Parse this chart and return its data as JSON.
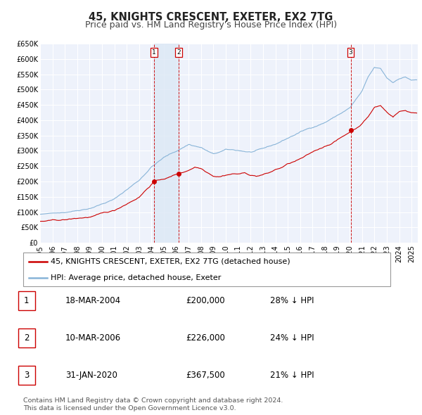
{
  "title": "45, KNIGHTS CRESCENT, EXETER, EX2 7TG",
  "subtitle": "Price paid vs. HM Land Registry's House Price Index (HPI)",
  "ylim": [
    0,
    650000
  ],
  "yticks": [
    0,
    50000,
    100000,
    150000,
    200000,
    250000,
    300000,
    350000,
    400000,
    450000,
    500000,
    550000,
    600000,
    650000
  ],
  "ytick_labels": [
    "£0",
    "£50K",
    "£100K",
    "£150K",
    "£200K",
    "£250K",
    "£300K",
    "£350K",
    "£400K",
    "£450K",
    "£500K",
    "£550K",
    "£600K",
    "£650K"
  ],
  "xlim_start": 1995.0,
  "xlim_end": 2025.5,
  "xtick_years": [
    1995,
    1996,
    1997,
    1998,
    1999,
    2000,
    2001,
    2002,
    2003,
    2004,
    2005,
    2006,
    2007,
    2008,
    2009,
    2010,
    2011,
    2012,
    2013,
    2014,
    2015,
    2016,
    2017,
    2018,
    2019,
    2020,
    2021,
    2022,
    2023,
    2024,
    2025
  ],
  "bg_color": "#eef2fb",
  "grid_color": "#ffffff",
  "sale_color": "#cc0000",
  "hpi_color": "#88b4d8",
  "vline_color": "#cc0000",
  "sale_marker_color": "#cc0000",
  "span_color": "#dce8f5",
  "transaction1_date": 2004.21,
  "transaction1_price": 200000,
  "transaction1_label": "1",
  "transaction2_date": 2006.19,
  "transaction2_price": 226000,
  "transaction2_label": "2",
  "transaction3_date": 2020.08,
  "transaction3_price": 367500,
  "transaction3_label": "3",
  "legend_address": "45, KNIGHTS CRESCENT, EXETER, EX2 7TG (detached house)",
  "legend_hpi": "HPI: Average price, detached house, Exeter",
  "table_rows": [
    {
      "num": "1",
      "date": "18-MAR-2004",
      "price": "£200,000",
      "hpi": "28% ↓ HPI"
    },
    {
      "num": "2",
      "date": "10-MAR-2006",
      "price": "£226,000",
      "hpi": "24% ↓ HPI"
    },
    {
      "num": "3",
      "date": "31-JAN-2020",
      "price": "£367,500",
      "hpi": "21% ↓ HPI"
    }
  ],
  "footnote": "Contains HM Land Registry data © Crown copyright and database right 2024.\nThis data is licensed under the Open Government Licence v3.0.",
  "title_fontsize": 10.5,
  "subtitle_fontsize": 9,
  "tick_fontsize": 7,
  "legend_fontsize": 8,
  "table_fontsize": 8.5,
  "footnote_fontsize": 6.8
}
